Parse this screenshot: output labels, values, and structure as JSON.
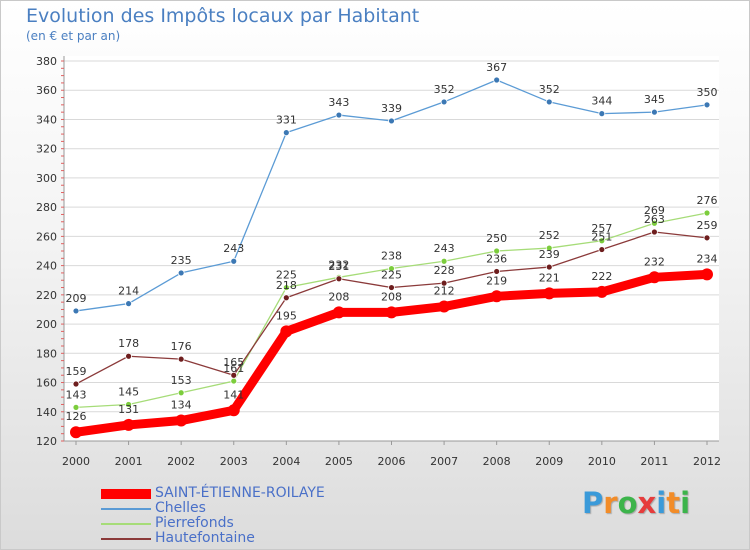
{
  "header": {
    "title": "Evolution des Impôts locaux par Habitant",
    "subtitle": "(en € et par an)"
  },
  "chart_data": {
    "type": "line",
    "title": "Evolution des Impôts locaux par Habitant",
    "subtitle": "(en € et par an)",
    "xlabel": "",
    "ylabel": "",
    "ylim": [
      120,
      380
    ],
    "y_ticks": [
      120,
      140,
      160,
      180,
      200,
      220,
      240,
      260,
      280,
      300,
      320,
      340,
      360,
      380
    ],
    "categories": [
      "2000",
      "2001",
      "2002",
      "2003",
      "2004",
      "2005",
      "2006",
      "2007",
      "2008",
      "2009",
      "2010",
      "2011",
      "2012"
    ],
    "grid": "horizontal",
    "legend_position": "bottom-left",
    "series": [
      {
        "name": "Chelles",
        "color": "#5b9bd5",
        "point_color": "#3c78b4",
        "values": [
          209,
          214,
          235,
          243,
          331,
          343,
          339,
          352,
          367,
          352,
          344,
          345,
          350
        ]
      },
      {
        "name": "Pierrefonds",
        "color": "#a6dc78",
        "point_color": "#7ccd3c",
        "values": [
          143,
          145,
          153,
          161,
          225,
          232,
          238,
          243,
          250,
          252,
          257,
          269,
          276
        ]
      },
      {
        "name": "Hautefontaine",
        "color": "#8b3a3a",
        "point_color": "#6e1e1e",
        "values": [
          159,
          178,
          176,
          165,
          218,
          231,
          225,
          228,
          236,
          239,
          251,
          263,
          259
        ]
      },
      {
        "name": "SAINT-ÉTIENNE-ROILAYE",
        "color": "#ff0000",
        "point_color": "#ff0000",
        "values": [
          126,
          131,
          134,
          141,
          195,
          208,
          208,
          212,
          219,
          221,
          222,
          232,
          234
        ]
      }
    ]
  },
  "legend": [
    {
      "name": "SAINT-ÉTIENNE-ROILAYE",
      "color": "#ff0000"
    },
    {
      "name": "Chelles",
      "color": "#5b9bd5"
    },
    {
      "name": "Pierrefonds",
      "color": "#a6dc78"
    },
    {
      "name": "Hautefontaine",
      "color": "#8b3a3a"
    }
  ],
  "logo": {
    "letters": [
      "P",
      "r",
      "o",
      "x",
      "i",
      "t",
      "i"
    ],
    "colors": [
      "#3a9ad9",
      "#f28c28",
      "#3cb44b",
      "#e63c3c",
      "#3a9ad9",
      "#f28c28",
      "#3cb44b"
    ]
  }
}
